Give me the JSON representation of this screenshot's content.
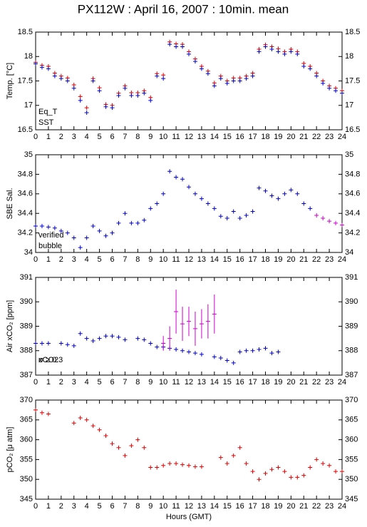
{
  "chart_data": [
    {
      "type": "scatter",
      "title": "PX112W : April 16, 2007 : 10min. mean",
      "ylabel": "Temp. [°C]",
      "x": [
        0,
        0.5,
        1,
        1.5,
        2,
        2.5,
        3,
        3.5,
        4,
        4.5,
        5,
        5.5,
        6,
        6.5,
        7,
        7.5,
        8,
        8.5,
        9,
        9.5,
        10,
        10.5,
        11,
        11.5,
        12,
        12.5,
        13,
        13.5,
        14,
        14.5,
        15,
        15.5,
        16,
        16.5,
        17,
        17.5,
        18,
        18.5,
        19,
        19.5,
        20,
        20.5,
        21,
        21.5,
        22,
        22.5,
        23,
        23.5,
        24
      ],
      "xlim": [
        0,
        24
      ],
      "xticks": [
        0,
        1,
        2,
        3,
        4,
        5,
        6,
        7,
        8,
        9,
        10,
        11,
        12,
        13,
        14,
        15,
        16,
        17,
        18,
        19,
        20,
        21,
        22,
        23,
        24
      ],
      "ylim": [
        16.5,
        18.5
      ],
      "yticks": [
        16.5,
        17,
        17.5,
        18,
        18.5
      ],
      "series": [
        {
          "name": "Eq_T",
          "color": "#dd0000",
          "values": [
            17.88,
            17.82,
            17.8,
            17.66,
            17.6,
            17.56,
            17.42,
            17.18,
            16.95,
            17.55,
            17.36,
            17.02,
            17.0,
            17.25,
            17.4,
            17.26,
            17.26,
            17.3,
            17.16,
            17.65,
            17.62,
            18.3,
            18.26,
            18.25,
            18.1,
            17.95,
            17.8,
            17.7,
            17.46,
            17.6,
            17.5,
            17.56,
            17.56,
            17.6,
            17.66,
            18.15,
            18.24,
            18.2,
            18.16,
            18.1,
            18.15,
            18.1,
            17.86,
            17.8,
            17.66,
            17.5,
            17.4,
            17.35,
            17.3
          ]
        },
        {
          "name": "SST",
          "color": "#0000cc",
          "values": [
            17.85,
            17.78,
            17.75,
            17.6,
            17.55,
            17.5,
            17.35,
            17.1,
            16.85,
            17.5,
            17.3,
            16.97,
            16.95,
            17.2,
            17.35,
            17.2,
            17.2,
            17.25,
            17.1,
            17.6,
            17.55,
            18.25,
            18.2,
            18.2,
            18.05,
            17.9,
            17.75,
            17.65,
            17.4,
            17.55,
            17.45,
            17.5,
            17.5,
            17.55,
            17.6,
            18.1,
            18.2,
            18.15,
            18.1,
            18.05,
            18.1,
            18.05,
            17.8,
            17.75,
            17.6,
            17.45,
            17.35,
            17.3,
            17.25
          ]
        }
      ]
    },
    {
      "type": "scatter",
      "ylabel": "SBE Sal.",
      "x": [
        0,
        0.5,
        1,
        1.5,
        2,
        2.5,
        3,
        3.5,
        4,
        4.5,
        5,
        5.5,
        6,
        6.5,
        7,
        7.5,
        8,
        8.5,
        9,
        9.5,
        10,
        10.5,
        11,
        11.5,
        12,
        12.5,
        13,
        13.5,
        14,
        14.5,
        15,
        15.5,
        16,
        16.5,
        17,
        17.5,
        18,
        18.5,
        19,
        19.5,
        20,
        20.5,
        21,
        21.5,
        22,
        22.5,
        23,
        23.5,
        24
      ],
      "xlim": [
        0,
        24
      ],
      "xticks": [
        0,
        1,
        2,
        3,
        4,
        5,
        6,
        7,
        8,
        9,
        10,
        11,
        12,
        13,
        14,
        15,
        16,
        17,
        18,
        19,
        20,
        21,
        22,
        23,
        24
      ],
      "ylim": [
        34,
        35
      ],
      "yticks": [
        34,
        34.2,
        34.4,
        34.6,
        34.8,
        35
      ],
      "series": [
        {
          "name": "verified",
          "color": "#0000cc",
          "values": [
            34.27,
            34.27,
            34.26,
            34.25,
            34.22,
            34.2,
            34.15,
            34.05,
            34.15,
            34.27,
            34.22,
            34.17,
            34.2,
            34.3,
            34.4,
            34.3,
            34.3,
            34.33,
            34.45,
            34.5,
            34.6,
            34.83,
            34.77,
            34.75,
            34.67,
            34.6,
            34.55,
            34.5,
            34.45,
            34.37,
            34.35,
            34.42,
            34.35,
            34.38,
            34.42,
            34.66,
            34.63,
            34.58,
            34.55,
            34.6,
            34.64,
            34.6,
            34.5,
            34.45,
            null,
            null,
            null,
            null,
            null
          ]
        },
        {
          "name": "bubble",
          "color": "#cc00cc",
          "values": [
            null,
            null,
            null,
            null,
            null,
            null,
            null,
            null,
            null,
            null,
            null,
            null,
            null,
            null,
            null,
            null,
            null,
            null,
            null,
            null,
            null,
            null,
            null,
            null,
            null,
            null,
            null,
            null,
            null,
            null,
            null,
            null,
            null,
            null,
            null,
            null,
            null,
            null,
            null,
            null,
            null,
            null,
            null,
            null,
            34.38,
            34.35,
            34.32,
            34.3,
            34.28
          ]
        }
      ]
    },
    {
      "type": "scatter",
      "ylabel": "Air xCO₂ [ppm]",
      "annotation": "σ ≥ 0.3",
      "x": [
        0,
        0.5,
        1,
        1.5,
        2,
        2.5,
        3,
        3.5,
        4,
        4.5,
        5,
        5.5,
        6,
        6.5,
        7,
        7.5,
        8,
        8.5,
        9,
        9.5,
        10,
        10.5,
        11,
        11.5,
        12,
        12.5,
        13,
        13.5,
        14,
        14.5,
        15,
        15.5,
        16,
        16.5,
        17,
        17.5,
        18,
        18.5,
        19,
        19.5,
        20,
        20.5,
        21,
        21.5,
        22,
        22.5,
        23,
        23.5,
        24
      ],
      "xlim": [
        0,
        24
      ],
      "xticks": [
        0,
        1,
        2,
        3,
        4,
        5,
        6,
        7,
        8,
        9,
        10,
        11,
        12,
        13,
        14,
        15,
        16,
        17,
        18,
        19,
        20,
        21,
        22,
        23,
        24
      ],
      "ylim": [
        387,
        391
      ],
      "yticks": [
        387,
        388,
        389,
        390,
        391
      ],
      "series": [
        {
          "name": "xCO2",
          "color": "#0000cc",
          "values": [
            388.3,
            388.3,
            388.3,
            null,
            388.3,
            388.25,
            388.2,
            388.7,
            388.5,
            388.4,
            388.5,
            388.6,
            388.6,
            388.55,
            388.45,
            null,
            388.5,
            388.45,
            388.3,
            388.15,
            388.15,
            388.1,
            388.05,
            388.0,
            387.95,
            387.9,
            387.85,
            null,
            387.75,
            387.7,
            387.6,
            387.5,
            387.95,
            388.0,
            388.0,
            388.05,
            388.1,
            387.9,
            387.95,
            null,
            null,
            null,
            null,
            null,
            null,
            null,
            null,
            null,
            null
          ]
        },
        {
          "name": "σ ≥ 0.3 points",
          "color": "#cc00cc",
          "values": [
            null,
            null,
            null,
            null,
            null,
            null,
            null,
            null,
            null,
            null,
            null,
            null,
            null,
            null,
            null,
            null,
            null,
            null,
            null,
            null,
            388.3,
            388.5,
            389.6,
            389.1,
            389.2,
            388.9,
            389.1,
            389.2,
            389.5,
            null,
            null,
            null,
            null,
            null,
            null,
            null,
            null,
            null,
            null,
            null,
            null,
            null,
            null,
            null,
            null,
            null,
            null,
            null,
            null
          ],
          "errors": [
            null,
            null,
            null,
            null,
            null,
            null,
            null,
            null,
            null,
            null,
            null,
            null,
            null,
            null,
            null,
            null,
            null,
            null,
            null,
            null,
            0.3,
            0.5,
            0.9,
            0.7,
            0.6,
            0.7,
            0.6,
            0.7,
            0.8,
            null,
            null,
            null,
            null,
            null,
            null,
            null,
            null,
            null,
            null,
            null,
            null,
            null,
            null,
            null,
            null,
            null,
            null,
            null,
            null
          ]
        }
      ]
    },
    {
      "type": "scatter",
      "ylabel": "pCO₂ [μ atm]",
      "xlabel": "Hours (GMT)",
      "x": [
        0,
        0.5,
        1,
        1.5,
        2,
        2.5,
        3,
        3.5,
        4,
        4.5,
        5,
        5.5,
        6,
        6.5,
        7,
        7.5,
        8,
        8.5,
        9,
        9.5,
        10,
        10.5,
        11,
        11.5,
        12,
        12.5,
        13,
        13.5,
        14,
        14.5,
        15,
        15.5,
        16,
        16.5,
        17,
        17.5,
        18,
        18.5,
        19,
        19.5,
        20,
        20.5,
        21,
        21.5,
        22,
        22.5,
        23,
        23.5,
        24
      ],
      "xlim": [
        0,
        24
      ],
      "xticks": [
        0,
        1,
        2,
        3,
        4,
        5,
        6,
        7,
        8,
        9,
        10,
        11,
        12,
        13,
        14,
        15,
        16,
        17,
        18,
        19,
        20,
        21,
        22,
        23,
        24
      ],
      "ylim": [
        345,
        370
      ],
      "yticks": [
        345,
        350,
        355,
        360,
        365,
        370
      ],
      "series": [
        {
          "name": "pCO2",
          "color": "#dd0000",
          "values": [
            367.5,
            366.8,
            366.5,
            null,
            null,
            null,
            364.2,
            365.5,
            365,
            363.5,
            362.5,
            361,
            359,
            358,
            356,
            358.5,
            360,
            358,
            353,
            353,
            353.5,
            354,
            354,
            353.7,
            353.5,
            353.2,
            353.2,
            null,
            null,
            355.5,
            354,
            356,
            358,
            354,
            352,
            350,
            351.5,
            352.5,
            353,
            352,
            350.5,
            350.5,
            351,
            353,
            355,
            354,
            353.5,
            352,
            352
          ]
        }
      ]
    }
  ]
}
